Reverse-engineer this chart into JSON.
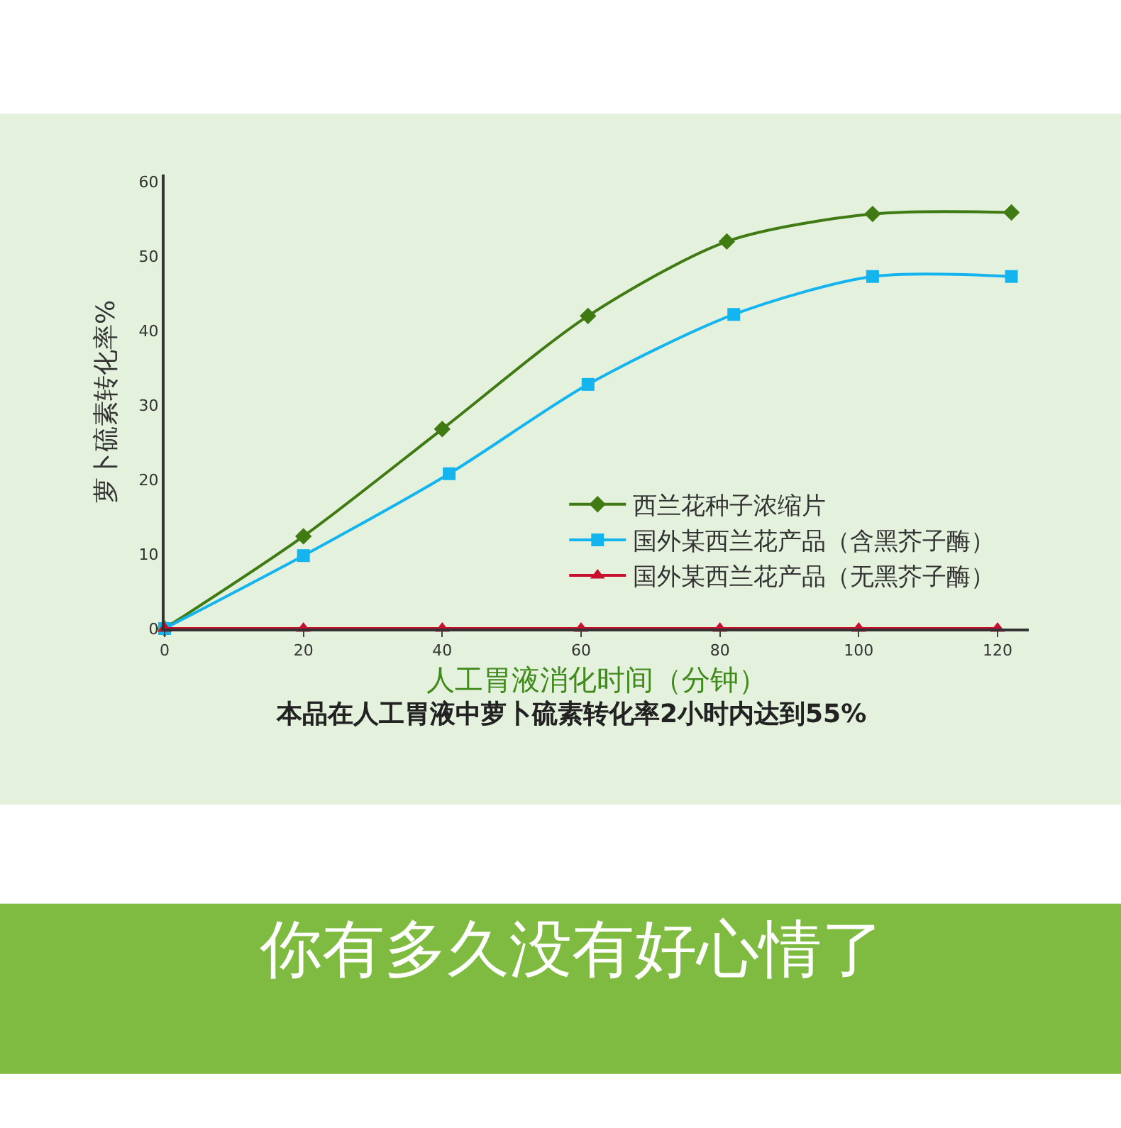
{
  "chart_data": {
    "type": "line",
    "subtitle": "本品在人工胃液中萝卜硫素转化率2小时内达到55%",
    "xlabel": "人工胃液消化时间（分钟）",
    "ylabel": "萝卜硫素转化率%",
    "annotations": [
      "你有多久没有好心情了"
    ],
    "xlim": [
      0,
      124.5
    ],
    "xticks": [
      0,
      20,
      40,
      60,
      80,
      100,
      120
    ],
    "ylim": [
      0,
      61
    ],
    "yticks": [
      0,
      10,
      20,
      30,
      40,
      50,
      60
    ],
    "grid": false,
    "legend": "bottom right",
    "line_style": "solid",
    "series": [
      {
        "name": "西兰花种子浓缩片",
        "color": "#3f7a12",
        "marker": "diamond",
        "x": [
          0,
          20,
          40,
          61,
          81,
          102,
          122
        ],
        "values": [
          0,
          12.4,
          26.8,
          42,
          52,
          55.7,
          55.9
        ]
      },
      {
        "name": "国外某西兰花产品（含黑芥子酶）",
        "color": "#14b4ef",
        "marker": "square",
        "x": [
          0,
          20,
          41,
          61,
          82,
          102,
          122
        ],
        "values": [
          0,
          9.8,
          20.8,
          32.8,
          42.2,
          47.3,
          47.3
        ]
      },
      {
        "name": "国外某西兰花产品（无黑芥子酶）",
        "color": "#c8102e",
        "marker": "triangle",
        "x": [
          0,
          20,
          40,
          60,
          80,
          100,
          120
        ],
        "values": [
          0,
          0,
          0,
          0,
          0,
          0,
          0
        ]
      }
    ]
  }
}
